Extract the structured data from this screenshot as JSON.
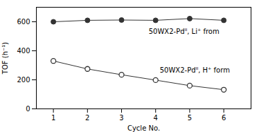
{
  "chart_data": {
    "type": "line",
    "xlabel": "Cycle No.",
    "ylabel": "TOF (h⁻¹)",
    "x": [
      1,
      2,
      3,
      4,
      5,
      6
    ],
    "series": [
      {
        "color": "#333333",
        "marker": "circle",
        "values": [
          600,
          610,
          612,
          610,
          622,
          610
        ]
      },
      {
        "color": "#333333",
        "marker": "open_circle",
        "values": [
          330,
          275,
          235,
          198,
          160,
          132
        ]
      }
    ],
    "annotations": [
      "50WX2-Pdᴵᴵ, Li⁺ from",
      "50WX2-Pdᴵᴵ, H⁺ form"
    ],
    "xlim": [
      0.5,
      6.8
    ],
    "xticks": [
      1,
      2,
      3,
      4,
      5,
      6
    ],
    "ylim": [
      0,
      700
    ],
    "yticks": [
      0,
      200,
      400,
      600
    ],
    "grid": false
  }
}
